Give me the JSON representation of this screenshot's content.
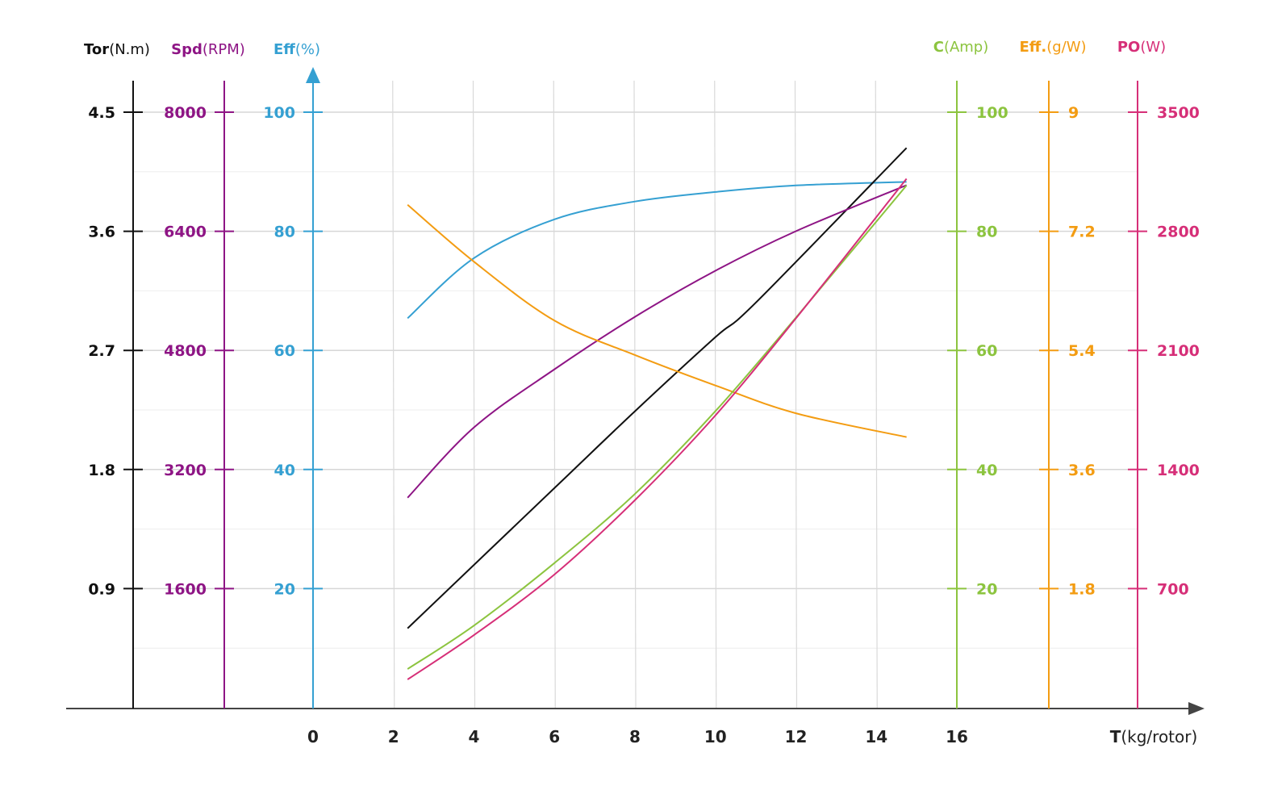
{
  "chart_data": {
    "type": "line",
    "xlabel_bold": "T",
    "xlabel_unit": "(kg/rotor)",
    "x_ticks": [
      "0",
      "2",
      "4",
      "6",
      "8",
      "10",
      "12",
      "14",
      "16"
    ],
    "xlim": [
      0,
      16
    ],
    "axes": [
      {
        "id": "tor",
        "bold": "Tor",
        "unit": "(N.m)",
        "color": "#111111",
        "side": "left",
        "ticks": [
          "0.9",
          "1.8",
          "2.7",
          "3.6",
          "4.5"
        ],
        "ylim": [
          0,
          4.5
        ]
      },
      {
        "id": "spd",
        "bold": "Spd",
        "unit": "(RPM)",
        "color": "#8e1585",
        "side": "left",
        "ticks": [
          "1600",
          "3200",
          "4800",
          "6400",
          "8000"
        ],
        "ylim": [
          0,
          8000
        ]
      },
      {
        "id": "eff",
        "bold": "Eff",
        "unit": "(%)",
        "color": "#35a0d2",
        "side": "left",
        "ticks": [
          "20",
          "40",
          "60",
          "80",
          "100"
        ],
        "ylim": [
          0,
          100
        ]
      },
      {
        "id": "amp",
        "bold": "C",
        "unit": "(Amp)",
        "color": "#8cc43f",
        "side": "right",
        "ticks": [
          "20",
          "40",
          "60",
          "80",
          "100"
        ],
        "ylim": [
          0,
          100
        ]
      },
      {
        "id": "gw",
        "bold": "Eff.",
        "unit": "(g/W)",
        "color": "#f39c12",
        "side": "right",
        "ticks": [
          "1.8",
          "3.6",
          "5.4",
          "7.2",
          "9"
        ],
        "ylim": [
          0,
          9
        ]
      },
      {
        "id": "po",
        "bold": "PO",
        "unit": "(W)",
        "color": "#d62f78",
        "side": "right",
        "ticks": [
          "700",
          "1400",
          "2100",
          "2800",
          "3500"
        ],
        "ylim": [
          0,
          3500
        ]
      }
    ],
    "series": [
      {
        "name": "Eff(%)",
        "axis": "eff",
        "x": [
          2.35,
          4,
          6,
          8,
          10,
          12,
          14.75
        ],
        "y": [
          65.4,
          75.5,
          82,
          85,
          86.6,
          87.7,
          88.3
        ]
      },
      {
        "name": "Tor(N.m)",
        "axis": "tor",
        "x": [
          2.35,
          6,
          8,
          10,
          11,
          14.75
        ],
        "y": [
          0.6,
          1.66,
          2.24,
          2.8,
          3.06,
          4.23
        ]
      },
      {
        "name": "Spd(RPM)",
        "axis": "spd",
        "x": [
          2.35,
          4,
          6,
          8,
          10,
          12,
          14.75
        ],
        "y": [
          2821,
          3765,
          4546,
          5251,
          5870,
          6401,
          7020
        ]
      },
      {
        "name": "Eff.(g/W)",
        "axis": "gw",
        "x": [
          2.35,
          4,
          6,
          8,
          10,
          12,
          14.75
        ],
        "y": [
          7.6,
          6.74,
          5.85,
          5.33,
          4.87,
          4.45,
          4.09
        ]
      },
      {
        "name": "C(Amp)",
        "axis": "amp",
        "x": [
          2.35,
          4,
          6,
          8,
          10,
          12,
          14.75
        ],
        "y": [
          6.5,
          13.8,
          24.3,
          35.9,
          49.8,
          65.5,
          87.7
        ]
      },
      {
        "name": "PO(W)",
        "axis": "po",
        "x": [
          2.35,
          4,
          6,
          8,
          10,
          12,
          14.75
        ],
        "y": [
          166,
          427,
          783,
          1220,
          1718,
          2288,
          3109
        ]
      }
    ],
    "grid": true
  }
}
